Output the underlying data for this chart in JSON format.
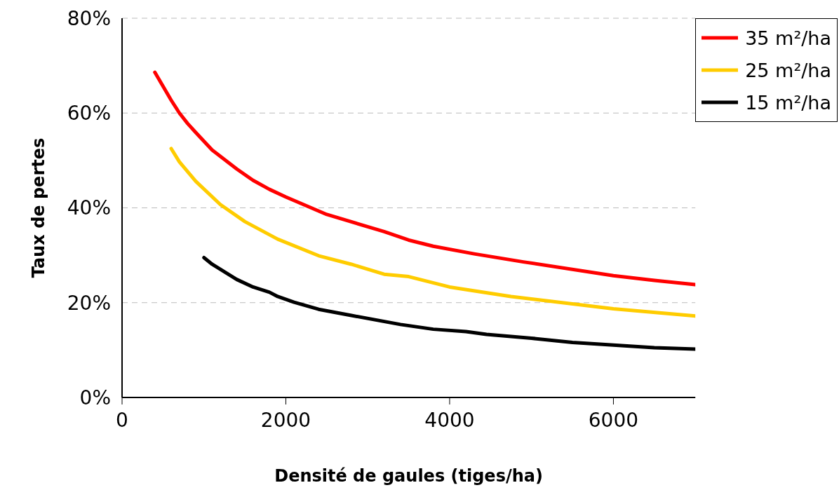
{
  "chart_data": {
    "type": "line",
    "xlabel": "Densité de gaules (tiges/ha)",
    "ylabel": "Taux de pertes",
    "xlim": [
      0,
      7000
    ],
    "xticks": [
      0,
      2000,
      4000,
      6000
    ],
    "ylim": [
      0,
      80
    ],
    "yticks": [
      {
        "value": 0,
        "label": "0%"
      },
      {
        "value": 20,
        "label": "20%"
      },
      {
        "value": 40,
        "label": "40%"
      },
      {
        "value": 60,
        "label": "60%"
      },
      {
        "value": 80,
        "label": "80%"
      }
    ],
    "grid": "y",
    "legend": "top right",
    "marker": "none",
    "line_style": "solid",
    "series": [
      {
        "name": "35 m²/ha",
        "color": "#ff0000",
        "x": [
          400,
          600,
          700,
          800,
          900,
          1100,
          1400,
          1600,
          1800,
          2000,
          2500,
          3200,
          3500,
          3800,
          4300,
          4900,
          6000,
          6500,
          7000
        ],
        "values": [
          68.6,
          62.7,
          60.0,
          57.8,
          55.9,
          52.2,
          48.2,
          45.8,
          43.9,
          42.3,
          38.6,
          35.0,
          33.2,
          31.9,
          30.3,
          28.6,
          25.7,
          24.7,
          23.8
        ]
      },
      {
        "name": "25 m²/ha",
        "color": "#ffcc00",
        "x": [
          600,
          700,
          900,
          1200,
          1500,
          1900,
          2400,
          2800,
          3200,
          3500,
          4000,
          4750,
          6000,
          7000
        ],
        "values": [
          52.5,
          49.7,
          45.6,
          40.7,
          37.1,
          33.4,
          29.9,
          28.1,
          26.0,
          25.5,
          23.3,
          21.3,
          18.7,
          17.2
        ]
      },
      {
        "name": "15 m²/ha",
        "color": "#000000",
        "x": [
          1000,
          1100,
          1400,
          1600,
          1800,
          1900,
          2100,
          2400,
          2800,
          3400,
          3800,
          4200,
          4450,
          5000,
          5500,
          6500,
          7000
        ],
        "values": [
          29.5,
          28.1,
          24.9,
          23.3,
          22.2,
          21.3,
          20.1,
          18.6,
          17.3,
          15.4,
          14.4,
          13.9,
          13.3,
          12.5,
          11.6,
          10.5,
          10.2
        ]
      }
    ]
  }
}
